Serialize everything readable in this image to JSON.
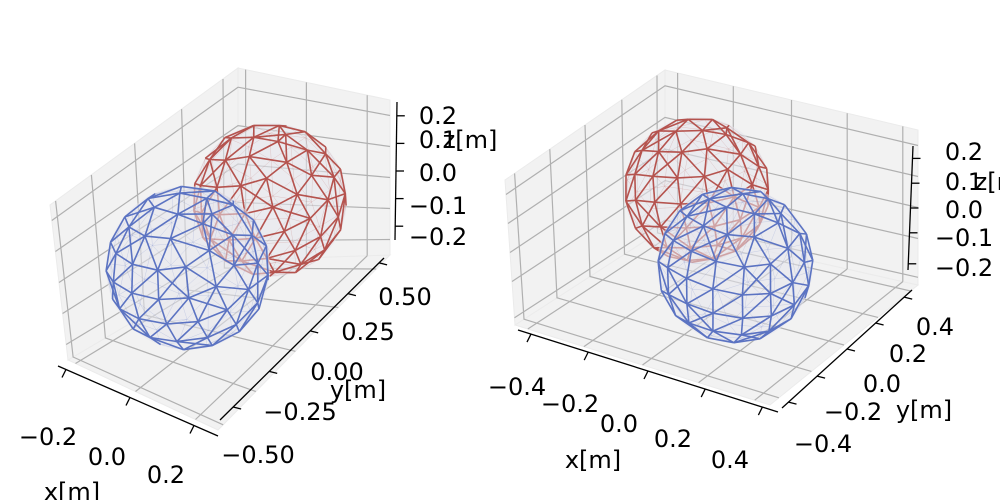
{
  "chart_data": [
    {
      "type": "wireframe-3d",
      "xlabel": "x[m]",
      "ylabel": "y[m]",
      "zlabel": "z[m]",
      "x_ticks": [
        "−0.2",
        "0.0",
        "0.2"
      ],
      "y_ticks": [
        "−0.50",
        "−0.25",
        "0.00",
        "0.25",
        "0.50"
      ],
      "z_ticks": [
        "−0.2",
        "−0.1",
        "0.0",
        "0.1",
        "0.2"
      ],
      "grid": true,
      "series": [
        {
          "color": "#b5534e",
          "center": [
            0.0,
            0.25,
            0.0
          ],
          "radius": 0.2
        },
        {
          "color": "#5b73c2",
          "center": [
            0.0,
            -0.25,
            0.0
          ],
          "radius": 0.2
        }
      ]
    },
    {
      "type": "wireframe-3d",
      "xlabel": "x[m]",
      "ylabel": "y[m]",
      "zlabel": "z[m]",
      "x_ticks": [
        "−0.4",
        "−0.2",
        "0.0",
        "0.2",
        "0.4"
      ],
      "y_ticks": [
        "−0.4",
        "−0.2",
        "0.0",
        "0.2",
        "0.4"
      ],
      "z_ticks": [
        "−0.2",
        "−0.1",
        "0.0",
        "0.1",
        "0.2"
      ],
      "grid": true,
      "series": [
        {
          "color": "#b5534e",
          "center": [
            -0.2,
            0.2,
            0.0
          ],
          "radius": 0.2
        },
        {
          "color": "#5b73c2",
          "center": [
            0.2,
            -0.2,
            0.0
          ],
          "radius": 0.2
        }
      ]
    }
  ]
}
